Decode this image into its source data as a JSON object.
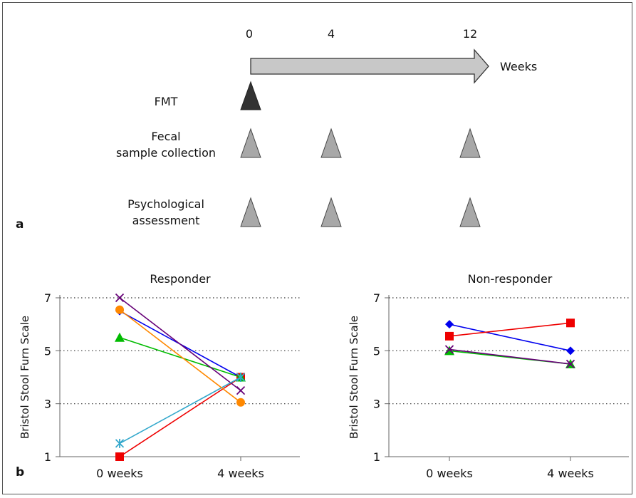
{
  "panel_a": {
    "letter": "a",
    "timepoints": [
      "0",
      "4",
      "12"
    ],
    "unit_label": "Weeks",
    "rows": [
      {
        "label_lines": [
          "FMT"
        ],
        "marker_color": "#333333",
        "times": [
          "0"
        ]
      },
      {
        "label_lines": [
          "Fecal",
          "sample collection"
        ],
        "marker_color": "#a8a8a8",
        "times": [
          "0",
          "4",
          "12"
        ]
      },
      {
        "label_lines": [
          "Psychological",
          "assessment"
        ],
        "marker_color": "#a8a8a8",
        "times": [
          "0",
          "4",
          "12"
        ]
      }
    ]
  },
  "panel_b": {
    "letter": "b"
  },
  "chart_data": [
    {
      "type": "line",
      "title": "Responder",
      "ylabel": "Bristol Stool Furn Scale",
      "categories": [
        "0 weeks",
        "4 weeks"
      ],
      "ylim": [
        1,
        7
      ],
      "yticks": [
        1,
        3,
        5,
        7
      ],
      "grid": "horizontal dotted",
      "series": [
        {
          "values": [
            6.5,
            4.0
          ],
          "color": "#0000ee",
          "marker": "diamond"
        },
        {
          "values": [
            1.0,
            4.0
          ],
          "color": "#ee0000",
          "marker": "square"
        },
        {
          "values": [
            5.5,
            4.0
          ],
          "color": "#00bb00",
          "marker": "triangle"
        },
        {
          "values": [
            7.0,
            3.5
          ],
          "color": "#660077",
          "marker": "x"
        },
        {
          "values": [
            1.5,
            4.0
          ],
          "color": "#33a8cc",
          "marker": "asterisk"
        },
        {
          "values": [
            6.55,
            3.05
          ],
          "color": "#ff8800",
          "marker": "circle"
        }
      ]
    },
    {
      "type": "line",
      "title": "Non-responder",
      "ylabel": "Bristol Stool Furn Scale",
      "categories": [
        "0 weeks",
        "4 weeks"
      ],
      "ylim": [
        1,
        7
      ],
      "yticks": [
        1,
        3,
        5,
        7
      ],
      "grid": "horizontal dotted",
      "series": [
        {
          "values": [
            6.0,
            5.0
          ],
          "color": "#0000ee",
          "marker": "diamond"
        },
        {
          "values": [
            5.55,
            6.05
          ],
          "color": "#ee0000",
          "marker": "square"
        },
        {
          "values": [
            5.0,
            4.5
          ],
          "color": "#00bb00",
          "marker": "triangle"
        },
        {
          "values": [
            5.05,
            4.5
          ],
          "color": "#660077",
          "marker": "x"
        }
      ]
    }
  ]
}
